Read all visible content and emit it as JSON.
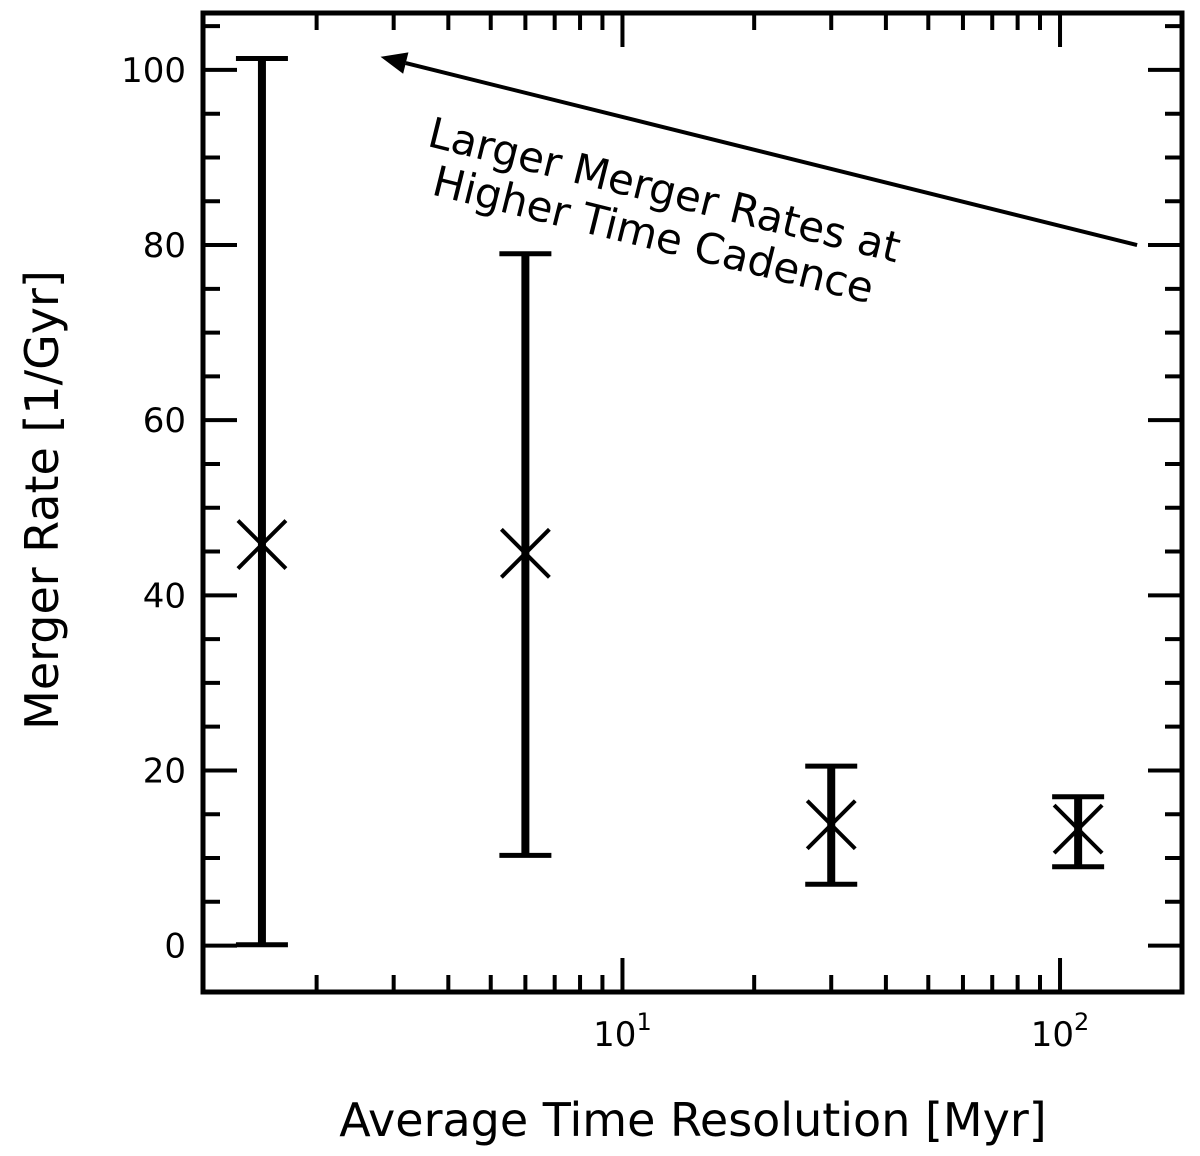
{
  "chart_data": {
    "type": "scatter",
    "xlabel": "Average Time Resolution [Myr]",
    "ylabel": "Merger Rate [1/Gyr]",
    "xscale": "log",
    "xlim": [
      1.1,
      190
    ],
    "ylim": [
      -5.3,
      106.5
    ],
    "grid": false,
    "legend": "none",
    "yticks": [
      0,
      20,
      40,
      60,
      80,
      100
    ],
    "xticks_major": [
      {
        "value": 10,
        "base": "10",
        "exp": "1"
      },
      {
        "value": 100,
        "base": "10",
        "exp": "2"
      }
    ],
    "marker": "x",
    "color": "#000000",
    "points": [
      {
        "x": 1.5,
        "y": 45.8,
        "yerr_low": 0.1,
        "yerr_high": 101.3
      },
      {
        "x": 6.0,
        "y": 44.8,
        "yerr_low": 10.3,
        "yerr_high": 79.0
      },
      {
        "x": 30.0,
        "y": 13.8,
        "yerr_low": 7.0,
        "yerr_high": 20.5
      },
      {
        "x": 110.0,
        "y": 13.3,
        "yerr_low": 9.0,
        "yerr_high": 17.0
      }
    ],
    "annotation": {
      "lines": [
        "Larger Merger Rates at",
        "Higher Time Cadence"
      ],
      "arrow_from": {
        "x": 150,
        "y": 80
      },
      "arrow_to": {
        "x": 2.8,
        "y": 101.5
      }
    }
  }
}
